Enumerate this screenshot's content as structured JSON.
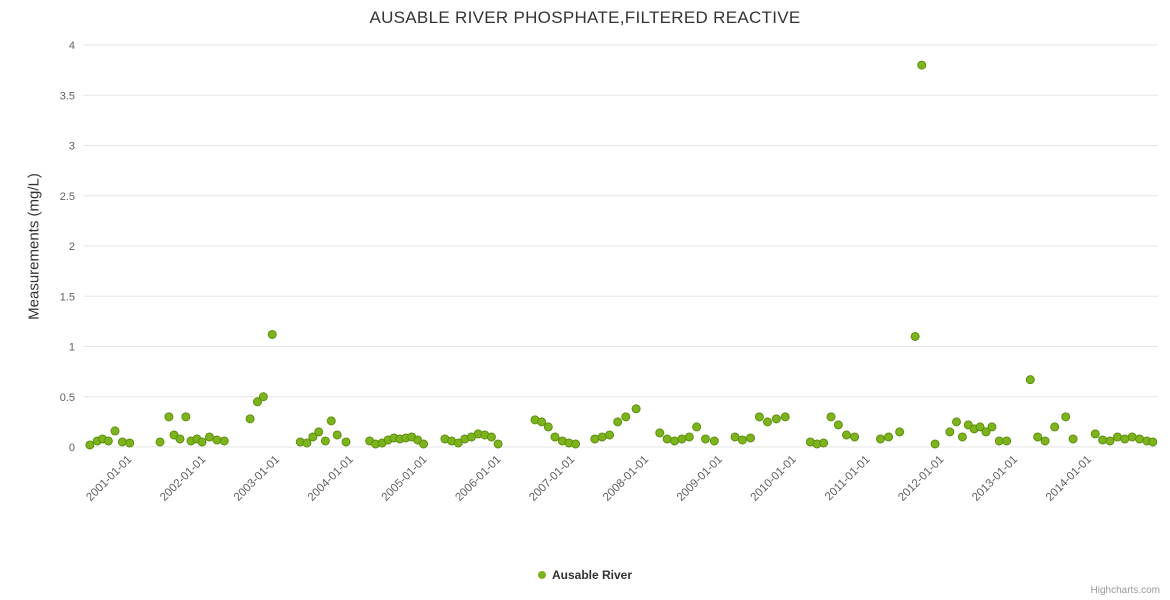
{
  "credits": {
    "label": "Highcharts.com"
  },
  "chart_data": {
    "type": "scatter",
    "title": "AUSABLE RIVER PHOSPHATE,FILTERED REACTIVE",
    "xlabel": "",
    "ylabel": "Measurements (mg/L)",
    "ylim": [
      0,
      4
    ],
    "xlim": [
      2000.4,
      2014.95
    ],
    "grid": "horizontal",
    "legend_position": "bottom-center",
    "grid_color": "#e6e6e6",
    "axis_label_color": "#606060",
    "y_ticks": [
      0,
      0.5,
      1,
      1.5,
      2,
      2.5,
      3,
      3.5,
      4
    ],
    "x_ticks": [
      {
        "value": 2001,
        "label": "2001-01-01"
      },
      {
        "value": 2002,
        "label": "2002-01-01"
      },
      {
        "value": 2003,
        "label": "2003-01-01"
      },
      {
        "value": 2004,
        "label": "2004-01-01"
      },
      {
        "value": 2005,
        "label": "2005-01-01"
      },
      {
        "value": 2006,
        "label": "2006-01-01"
      },
      {
        "value": 2007,
        "label": "2007-01-01"
      },
      {
        "value": 2008,
        "label": "2008-01-01"
      },
      {
        "value": 2009,
        "label": "2009-01-01"
      },
      {
        "value": 2010,
        "label": "2010-01-01"
      },
      {
        "value": 2011,
        "label": "2011-01-01"
      },
      {
        "value": 2012,
        "label": "2012-01-01"
      },
      {
        "value": 2013,
        "label": "2013-01-01"
      },
      {
        "value": 2014,
        "label": "2014-01-01"
      }
    ],
    "series": [
      {
        "name": "Ausable River",
        "color": "#7db41c",
        "marker_stroke": "#5c8f10",
        "points": [
          [
            2000.48,
            0.02
          ],
          [
            2000.58,
            0.06
          ],
          [
            2000.65,
            0.08
          ],
          [
            2000.73,
            0.06
          ],
          [
            2000.82,
            0.16
          ],
          [
            2000.92,
            0.05
          ],
          [
            2001.02,
            0.04
          ],
          [
            2001.43,
            0.05
          ],
          [
            2001.55,
            0.3
          ],
          [
            2001.62,
            0.12
          ],
          [
            2001.7,
            0.08
          ],
          [
            2001.78,
            0.3
          ],
          [
            2001.85,
            0.06
          ],
          [
            2001.93,
            0.08
          ],
          [
            2002.0,
            0.05
          ],
          [
            2002.1,
            0.1
          ],
          [
            2002.2,
            0.07
          ],
          [
            2002.3,
            0.06
          ],
          [
            2002.65,
            0.28
          ],
          [
            2002.75,
            0.45
          ],
          [
            2002.83,
            0.5
          ],
          [
            2002.95,
            1.12
          ],
          [
            2003.33,
            0.05
          ],
          [
            2003.42,
            0.04
          ],
          [
            2003.5,
            0.1
          ],
          [
            2003.58,
            0.15
          ],
          [
            2003.67,
            0.06
          ],
          [
            2003.75,
            0.26
          ],
          [
            2003.83,
            0.12
          ],
          [
            2003.95,
            0.05
          ],
          [
            2004.27,
            0.06
          ],
          [
            2004.35,
            0.03
          ],
          [
            2004.44,
            0.04
          ],
          [
            2004.52,
            0.07
          ],
          [
            2004.6,
            0.09
          ],
          [
            2004.68,
            0.08
          ],
          [
            2004.76,
            0.09
          ],
          [
            2004.84,
            0.1
          ],
          [
            2004.92,
            0.07
          ],
          [
            2005.0,
            0.03
          ],
          [
            2005.29,
            0.08
          ],
          [
            2005.38,
            0.06
          ],
          [
            2005.47,
            0.04
          ],
          [
            2005.56,
            0.08
          ],
          [
            2005.65,
            0.1
          ],
          [
            2005.74,
            0.13
          ],
          [
            2005.83,
            0.12
          ],
          [
            2005.92,
            0.1
          ],
          [
            2006.01,
            0.03
          ],
          [
            2006.51,
            0.27
          ],
          [
            2006.6,
            0.25
          ],
          [
            2006.69,
            0.2
          ],
          [
            2006.78,
            0.1
          ],
          [
            2006.88,
            0.06
          ],
          [
            2006.97,
            0.04
          ],
          [
            2007.06,
            0.03
          ],
          [
            2007.32,
            0.08
          ],
          [
            2007.42,
            0.1
          ],
          [
            2007.52,
            0.12
          ],
          [
            2007.63,
            0.25
          ],
          [
            2007.74,
            0.3
          ],
          [
            2007.88,
            0.38
          ],
          [
            2008.2,
            0.14
          ],
          [
            2008.3,
            0.08
          ],
          [
            2008.4,
            0.06
          ],
          [
            2008.5,
            0.08
          ],
          [
            2008.6,
            0.1
          ],
          [
            2008.7,
            0.2
          ],
          [
            2008.82,
            0.08
          ],
          [
            2008.94,
            0.06
          ],
          [
            2009.22,
            0.1
          ],
          [
            2009.32,
            0.07
          ],
          [
            2009.43,
            0.09
          ],
          [
            2009.55,
            0.3
          ],
          [
            2009.66,
            0.25
          ],
          [
            2009.78,
            0.28
          ],
          [
            2009.9,
            0.3
          ],
          [
            2010.24,
            0.05
          ],
          [
            2010.33,
            0.03
          ],
          [
            2010.42,
            0.04
          ],
          [
            2010.52,
            0.3
          ],
          [
            2010.62,
            0.22
          ],
          [
            2010.73,
            0.12
          ],
          [
            2010.84,
            0.1
          ],
          [
            2011.19,
            0.08
          ],
          [
            2011.3,
            0.1
          ],
          [
            2011.45,
            0.15
          ],
          [
            2011.66,
            1.1
          ],
          [
            2011.75,
            3.8
          ],
          [
            2011.93,
            0.03
          ],
          [
            2012.13,
            0.15
          ],
          [
            2012.22,
            0.25
          ],
          [
            2012.3,
            0.1
          ],
          [
            2012.38,
            0.22
          ],
          [
            2012.46,
            0.18
          ],
          [
            2012.54,
            0.2
          ],
          [
            2012.62,
            0.15
          ],
          [
            2012.7,
            0.2
          ],
          [
            2012.8,
            0.06
          ],
          [
            2012.9,
            0.06
          ],
          [
            2013.22,
            0.67
          ],
          [
            2013.32,
            0.1
          ],
          [
            2013.42,
            0.06
          ],
          [
            2013.55,
            0.2
          ],
          [
            2013.7,
            0.3
          ],
          [
            2013.8,
            0.08
          ],
          [
            2014.1,
            0.13
          ],
          [
            2014.2,
            0.07
          ],
          [
            2014.3,
            0.06
          ],
          [
            2014.4,
            0.1
          ],
          [
            2014.5,
            0.08
          ],
          [
            2014.6,
            0.1
          ],
          [
            2014.7,
            0.08
          ],
          [
            2014.8,
            0.06
          ],
          [
            2014.88,
            0.05
          ]
        ]
      }
    ]
  }
}
